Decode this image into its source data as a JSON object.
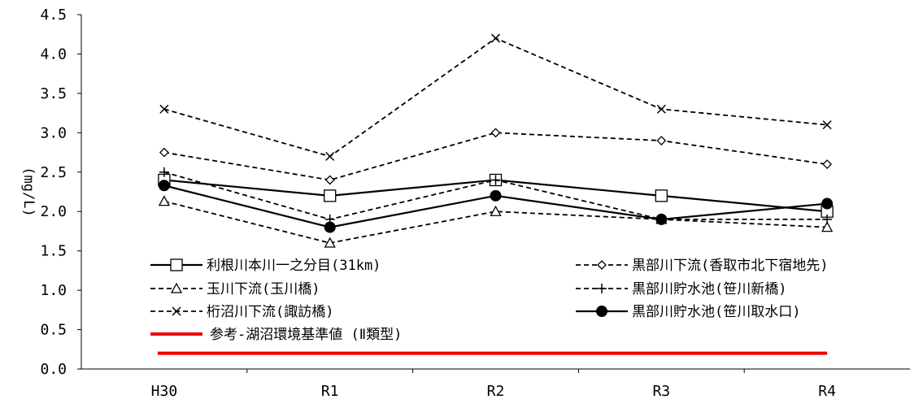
{
  "chart_data": {
    "type": "line",
    "title": "",
    "xlabel": "",
    "ylabel": "(mg/L)",
    "ylim": [
      0.0,
      4.5
    ],
    "yticks": [
      "0.0",
      "0.5",
      "1.0",
      "1.5",
      "2.0",
      "2.5",
      "3.0",
      "3.5",
      "4.0",
      "4.5"
    ],
    "categories": [
      "H30",
      "R1",
      "R2",
      "R3",
      "R4"
    ],
    "grid": false,
    "legend_position": "lower-center",
    "series": [
      {
        "name": "利根川本川一之分目(31km)",
        "values": [
          2.4,
          2.2,
          2.4,
          2.2,
          2.0
        ],
        "marker": "square",
        "dash": "solid",
        "color": "#000000"
      },
      {
        "name": "黒部川下流(香取市北下宿地先)",
        "values": [
          2.75,
          2.4,
          3.0,
          2.9,
          2.6
        ],
        "marker": "diamond",
        "dash": "dashed",
        "color": "#000000"
      },
      {
        "name": "玉川下流(玉川橋)",
        "values": [
          2.13,
          1.6,
          2.0,
          1.9,
          1.8
        ],
        "marker": "triangle",
        "dash": "dashed",
        "color": "#000000"
      },
      {
        "name": "黒部川貯水池(笹川新橋)",
        "values": [
          2.5,
          1.9,
          2.4,
          1.9,
          1.9
        ],
        "marker": "plus",
        "dash": "dashed",
        "color": "#000000"
      },
      {
        "name": "桁沼川下流(諏訪橋)",
        "values": [
          3.3,
          2.7,
          4.2,
          3.3,
          3.1
        ],
        "marker": "cross",
        "dash": "dashed",
        "color": "#000000"
      },
      {
        "name": "黒部川貯水池(笹川取水口)",
        "values": [
          2.33,
          1.8,
          2.2,
          1.9,
          2.1
        ],
        "marker": "circle",
        "dash": "solid",
        "color": "#000000"
      }
    ],
    "reference": {
      "name": "参考-湖沼環境基準値 (Ⅱ類型)",
      "value": 0.2,
      "color": "#ee0000"
    }
  }
}
